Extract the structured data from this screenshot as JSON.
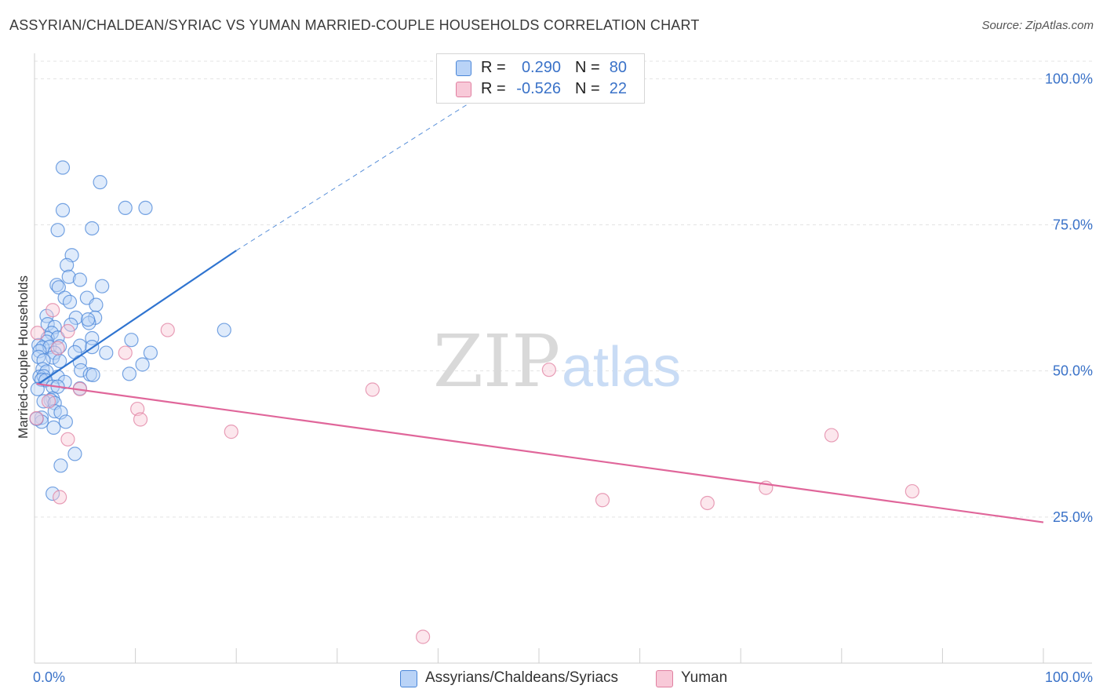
{
  "title": "ASSYRIAN/CHALDEAN/SYRIAC VS YUMAN MARRIED-COUPLE HOUSEHOLDS CORRELATION CHART",
  "source": "Source: ZipAtlas.com",
  "stats": [
    {
      "r_label": "R =",
      "r_value": "0.290",
      "n_label": "N =",
      "n_value": "80"
    },
    {
      "r_label": "R =",
      "r_value": "-0.526",
      "n_label": "N =",
      "n_value": "22"
    }
  ],
  "legend": {
    "series1": "Assyrians/Chaldeans/Syriacs",
    "series2": "Yuman"
  },
  "watermark": {
    "zip": "ZIP",
    "atlas": "atlas"
  },
  "colors": {
    "blue": "#4a86d8",
    "blue_fill": "#b9d3f7",
    "pink": "#e07fa0",
    "pink_fill": "#f8c9d8",
    "blue_line": "#2f74d0",
    "pink_line": "#e0669a",
    "tick_text": "#3a72c8"
  },
  "chart_data": {
    "type": "scatter",
    "title": "ASSYRIAN/CHALDEAN/SYRIAC VS YUMAN MARRIED-COUPLE HOUSEHOLDS CORRELATION CHART",
    "xlabel": "",
    "ylabel": "Married-couple Households",
    "xlim": [
      0,
      100
    ],
    "ylim": [
      0,
      103
    ],
    "x_tick_labels": [
      "0.0%",
      "100.0%"
    ],
    "y_ticks": [
      25,
      50,
      75,
      100
    ],
    "y_tick_labels": [
      "25.0%",
      "50.0%",
      "75.0%",
      "100.0%"
    ],
    "grid": true,
    "series": [
      {
        "name": "Assyrians/Chaldeans/Syriacs",
        "r": 0.29,
        "n": 80,
        "trend": {
          "x0": 0.4,
          "y0": 47.8,
          "x1": 20,
          "y1": 70.6,
          "dashed_to_x": 46,
          "dashed_to_y": 99
        },
        "points": [
          [
            2.8,
            84.8
          ],
          [
            6.5,
            82.3
          ],
          [
            2.8,
            77.5
          ],
          [
            9.0,
            77.9
          ],
          [
            11.0,
            77.9
          ],
          [
            2.3,
            74.1
          ],
          [
            5.7,
            74.4
          ],
          [
            3.7,
            69.8
          ],
          [
            3.2,
            68.1
          ],
          [
            3.4,
            66.1
          ],
          [
            4.5,
            65.6
          ],
          [
            2.2,
            64.7
          ],
          [
            2.4,
            64.3
          ],
          [
            6.7,
            64.5
          ],
          [
            3.0,
            62.5
          ],
          [
            5.2,
            62.5
          ],
          [
            3.5,
            61.8
          ],
          [
            6.1,
            61.3
          ],
          [
            1.2,
            59.4
          ],
          [
            4.1,
            59.1
          ],
          [
            6.0,
            59.1
          ],
          [
            5.4,
            58.2
          ],
          [
            1.3,
            58.0
          ],
          [
            3.6,
            57.9
          ],
          [
            5.3,
            58.8
          ],
          [
            2.0,
            57.5
          ],
          [
            18.8,
            57.0
          ],
          [
            1.7,
            56.5
          ],
          [
            1.3,
            55.6
          ],
          [
            2.3,
            55.7
          ],
          [
            5.7,
            55.6
          ],
          [
            9.6,
            55.3
          ],
          [
            1.2,
            55.0
          ],
          [
            0.4,
            54.4
          ],
          [
            0.8,
            54.0
          ],
          [
            1.5,
            54.1
          ],
          [
            2.5,
            54.2
          ],
          [
            4.5,
            54.3
          ],
          [
            5.7,
            54.1
          ],
          [
            0.5,
            53.4
          ],
          [
            2.0,
            53.1
          ],
          [
            4.0,
            53.2
          ],
          [
            7.1,
            53.1
          ],
          [
            11.5,
            53.1
          ],
          [
            0.4,
            52.4
          ],
          [
            1.8,
            52.3
          ],
          [
            0.9,
            51.8
          ],
          [
            2.5,
            51.7
          ],
          [
            4.5,
            51.5
          ],
          [
            10.7,
            51.1
          ],
          [
            0.8,
            50.3
          ],
          [
            1.2,
            49.9
          ],
          [
            4.6,
            50.1
          ],
          [
            5.5,
            49.4
          ],
          [
            9.4,
            49.5
          ],
          [
            0.5,
            49.0
          ],
          [
            0.9,
            49.1
          ],
          [
            2.3,
            49.0
          ],
          [
            5.8,
            49.3
          ],
          [
            0.7,
            48.5
          ],
          [
            1.1,
            48.4
          ],
          [
            3.0,
            48.1
          ],
          [
            1.8,
            47.3
          ],
          [
            2.3,
            47.3
          ],
          [
            0.3,
            46.9
          ],
          [
            4.5,
            47.0
          ],
          [
            1.8,
            45.3
          ],
          [
            1.6,
            45.0
          ],
          [
            0.9,
            44.8
          ],
          [
            2.0,
            44.5
          ],
          [
            2.0,
            43.1
          ],
          [
            2.6,
            42.9
          ],
          [
            0.7,
            42.0
          ],
          [
            0.7,
            41.3
          ],
          [
            3.1,
            41.3
          ],
          [
            1.9,
            40.3
          ],
          [
            4.0,
            35.8
          ],
          [
            2.6,
            33.8
          ],
          [
            1.8,
            29.0
          ],
          [
            0.2,
            41.8
          ]
        ]
      },
      {
        "name": "Yuman",
        "r": -0.526,
        "n": 22,
        "trend": {
          "x0": 0.2,
          "y0": 47.8,
          "x1": 100,
          "y1": 24.1
        },
        "points": [
          [
            1.8,
            60.4
          ],
          [
            3.3,
            56.8
          ],
          [
            0.3,
            56.5
          ],
          [
            2.3,
            53.9
          ],
          [
            9.0,
            53.1
          ],
          [
            13.2,
            57.0
          ],
          [
            51.0,
            50.2
          ],
          [
            33.5,
            46.8
          ],
          [
            4.5,
            46.9
          ],
          [
            1.4,
            44.8
          ],
          [
            10.2,
            43.5
          ],
          [
            10.5,
            41.7
          ],
          [
            19.5,
            39.6
          ],
          [
            3.3,
            38.3
          ],
          [
            0.2,
            41.9
          ],
          [
            79.0,
            39.0
          ],
          [
            2.5,
            28.4
          ],
          [
            56.3,
            27.9
          ],
          [
            66.7,
            27.4
          ],
          [
            72.5,
            30.0
          ],
          [
            87.0,
            29.4
          ],
          [
            38.5,
            4.5
          ]
        ]
      }
    ]
  }
}
